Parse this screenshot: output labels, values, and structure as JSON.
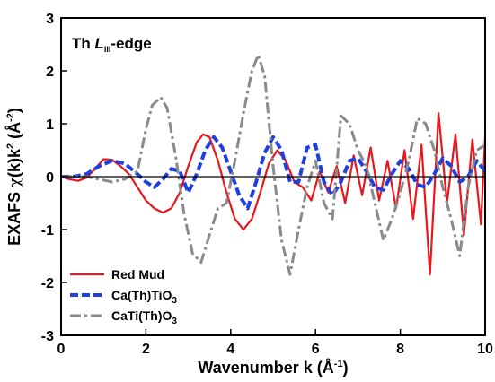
{
  "chart_data": {
    "type": "line",
    "xlabel": {
      "prefix": "Wavenumber k (Å",
      "sup": "-1",
      "suffix": ")"
    },
    "ylabel": {
      "part1": "EXAFS ",
      "chi": "χ",
      "part2": "(k)k",
      "sup1": "2",
      "part3": " (Å",
      "sup2": "-2",
      "part4": ")"
    },
    "annotation": {
      "prefix": "Th ",
      "italic": "L",
      "sub": "III",
      "suffix": "-edge"
    },
    "xlim": [
      0,
      10
    ],
    "ylim": [
      -3,
      3
    ],
    "xticks": [
      0,
      2,
      4,
      6,
      8,
      10
    ],
    "yticks": [
      -3,
      -2,
      -1,
      0,
      1,
      2,
      3
    ],
    "xtick_labels": [
      "0",
      "2",
      "4",
      "6",
      "8",
      "10"
    ],
    "ytick_labels": [
      "-3",
      "-2",
      "-1",
      "0",
      "1",
      "2",
      "3"
    ],
    "grid": false,
    "legend_position": "bottom-left",
    "zero_line": true,
    "series": [
      {
        "name": "Red Mud",
        "legend": {
          "main": "Red Mud",
          "sub": "",
          "tail": ""
        },
        "color": "#e8171e",
        "style": "solid",
        "x": [
          0.0,
          0.2,
          0.4,
          0.6,
          0.8,
          1.0,
          1.2,
          1.4,
          1.6,
          1.8,
          2.0,
          2.2,
          2.4,
          2.6,
          2.8,
          3.0,
          3.2,
          3.35,
          3.5,
          3.7,
          3.9,
          4.1,
          4.3,
          4.5,
          4.7,
          4.9,
          5.1,
          5.3,
          5.5,
          5.7,
          5.9,
          6.1,
          6.3,
          6.5,
          6.7,
          6.9,
          7.1,
          7.3,
          7.5,
          7.7,
          7.9,
          8.1,
          8.3,
          8.5,
          8.7,
          8.9,
          9.1,
          9.3,
          9.5,
          9.7,
          9.9,
          10.0
        ],
        "y": [
          0.0,
          -0.05,
          -0.08,
          -0.02,
          0.15,
          0.33,
          0.32,
          0.2,
          0.05,
          -0.2,
          -0.45,
          -0.6,
          -0.68,
          -0.6,
          -0.3,
          0.2,
          0.65,
          0.8,
          0.75,
          0.3,
          -0.3,
          -0.8,
          -1.0,
          -0.8,
          -0.3,
          0.25,
          0.5,
          0.3,
          -0.1,
          -0.2,
          -0.45,
          0.1,
          -0.3,
          0.2,
          -0.5,
          0.4,
          -0.35,
          0.55,
          -0.45,
          0.3,
          -0.6,
          0.5,
          -0.8,
          0.6,
          -1.85,
          1.2,
          -0.5,
          0.8,
          -1.1,
          0.7,
          -0.9,
          0.75
        ]
      },
      {
        "name": "Ca(Th)TiO3",
        "legend": {
          "main": "Ca(Th)TiO",
          "sub": "3",
          "tail": ""
        },
        "color": "#1f3fe0",
        "style": "dash",
        "x": [
          0.0,
          0.3,
          0.6,
          0.9,
          1.2,
          1.5,
          1.8,
          2.0,
          2.2,
          2.4,
          2.6,
          2.8,
          3.0,
          3.2,
          3.4,
          3.6,
          3.8,
          4.0,
          4.2,
          4.4,
          4.6,
          4.8,
          5.0,
          5.2,
          5.4,
          5.6,
          5.8,
          6.0,
          6.2,
          6.4,
          6.6,
          6.8,
          7.0,
          7.2,
          7.4,
          7.6,
          7.8,
          8.0,
          8.2,
          8.4,
          8.6,
          8.8,
          9.0,
          9.2,
          9.4,
          9.6,
          9.8,
          10.0
        ],
        "y": [
          0.0,
          0.0,
          0.05,
          0.2,
          0.3,
          0.25,
          0.05,
          -0.1,
          -0.2,
          -0.05,
          0.15,
          0.1,
          -0.3,
          0.05,
          0.5,
          0.75,
          0.55,
          0.1,
          -0.35,
          -0.6,
          -0.1,
          0.45,
          0.75,
          0.5,
          -0.1,
          -0.1,
          0.55,
          0.6,
          -0.1,
          -0.35,
          -0.1,
          0.3,
          0.35,
          0.1,
          -0.2,
          -0.25,
          0.05,
          0.3,
          0.15,
          -0.15,
          -0.2,
          0.05,
          0.35,
          0.2,
          -0.1,
          0.0,
          0.3,
          0.1
        ]
      },
      {
        "name": "CaTi(Th)O3",
        "legend": {
          "main": "CaTi(Th)O",
          "sub": "3",
          "tail": ""
        },
        "color": "#8a8a8a",
        "style": "dashdot",
        "x": [
          0.0,
          0.3,
          0.6,
          0.9,
          1.2,
          1.5,
          1.8,
          2.0,
          2.15,
          2.35,
          2.5,
          2.7,
          2.9,
          3.1,
          3.3,
          3.5,
          3.7,
          3.9,
          4.1,
          4.3,
          4.5,
          4.65,
          4.8,
          5.0,
          5.2,
          5.4,
          5.6,
          5.8,
          6.0,
          6.2,
          6.4,
          6.6,
          6.8,
          7.0,
          7.2,
          7.4,
          7.6,
          7.8,
          8.0,
          8.2,
          8.4,
          8.6,
          8.8,
          9.0,
          9.2,
          9.4,
          9.6,
          9.8,
          10.0
        ],
        "y": [
          0.0,
          0.0,
          0.0,
          -0.05,
          -0.1,
          -0.05,
          0.1,
          0.9,
          1.35,
          1.5,
          1.3,
          0.4,
          -0.7,
          -1.45,
          -1.62,
          -1.1,
          -0.6,
          -0.5,
          0.3,
          1.2,
          2.0,
          2.3,
          1.9,
          0.2,
          -1.2,
          -1.85,
          -1.0,
          -0.2,
          0.3,
          -0.5,
          -0.8,
          1.15,
          1.0,
          0.5,
          0.2,
          -0.5,
          -1.2,
          -0.8,
          -0.3,
          0.3,
          1.1,
          1.0,
          0.5,
          -0.2,
          -0.8,
          -1.5,
          -0.2,
          0.5,
          0.6
        ]
      }
    ]
  }
}
